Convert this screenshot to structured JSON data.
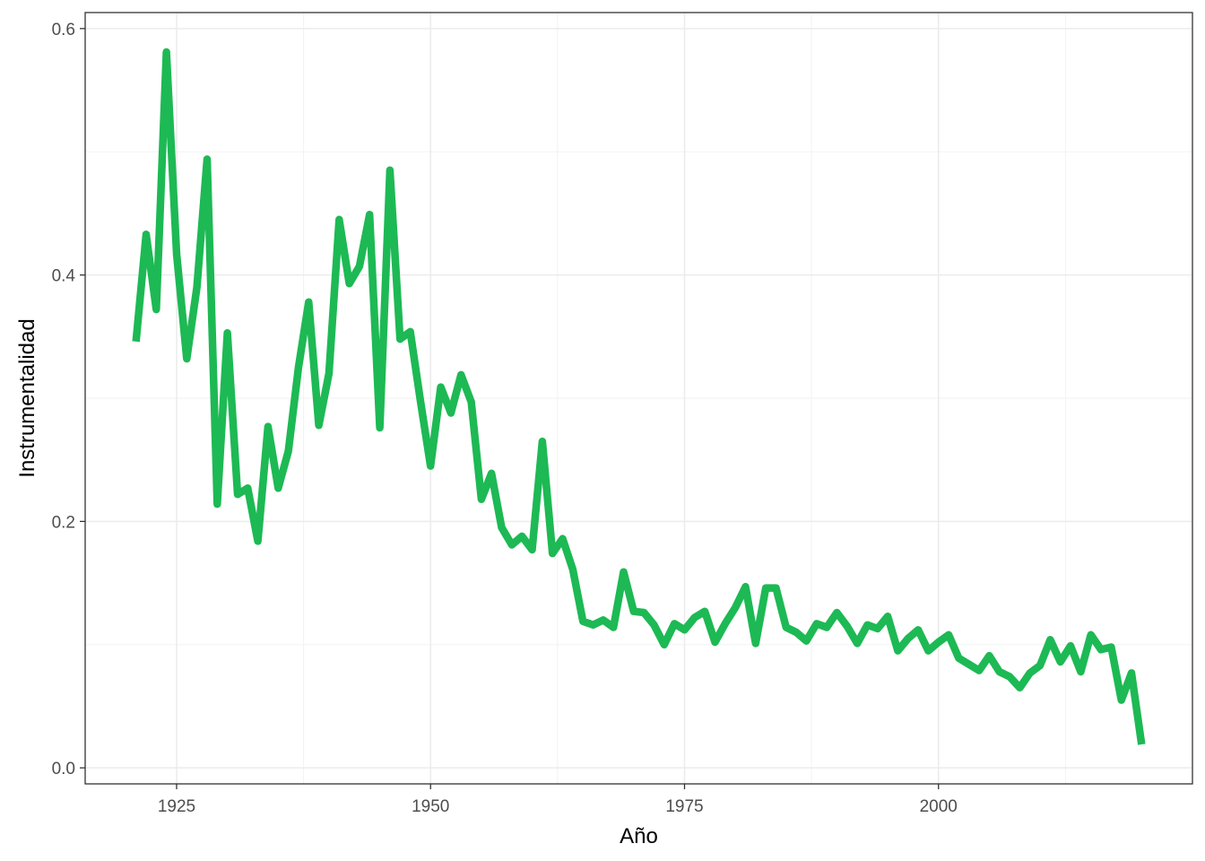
{
  "chart_data": {
    "type": "line",
    "title": "",
    "xlabel": "Año",
    "ylabel": "Instrumentalidad",
    "xlim": [
      1916,
      2025
    ],
    "ylim": [
      -0.013,
      0.613
    ],
    "x_ticks": [
      1925,
      1950,
      1975,
      2000
    ],
    "x_tick_labels": [
      "1925",
      "1950",
      "1975",
      "2000"
    ],
    "x_minor_ticks": [
      1937.5,
      1962.5,
      1987.5,
      2012.5
    ],
    "y_ticks": [
      0.0,
      0.2,
      0.4,
      0.6
    ],
    "y_tick_labels": [
      "0.0",
      "0.2",
      "0.4",
      "0.6"
    ],
    "y_minor_ticks": [
      0.1,
      0.3,
      0.5
    ],
    "grid": true,
    "legend": "none",
    "line_color": "#1DB954",
    "series": [
      {
        "x": [
          1921,
          1922,
          1923,
          1924,
          1925,
          1926,
          1927,
          1928,
          1929,
          1930,
          1931,
          1932,
          1933,
          1934,
          1935,
          1936,
          1937,
          1938,
          1939,
          1940,
          1941,
          1942,
          1943,
          1944,
          1945,
          1946,
          1947,
          1948,
          1949,
          1950,
          1951,
          1952,
          1953,
          1954,
          1955,
          1956,
          1957,
          1958,
          1959,
          1960,
          1961,
          1962,
          1963,
          1964,
          1965,
          1966,
          1967,
          1968,
          1969,
          1970,
          1971,
          1972,
          1973,
          1974,
          1975,
          1976,
          1977,
          1978,
          1979,
          1980,
          1981,
          1982,
          1983,
          1984,
          1985,
          1986,
          1987,
          1988,
          1989,
          1990,
          1991,
          1992,
          1993,
          1994,
          1995,
          1996,
          1997,
          1998,
          1999,
          2000,
          2001,
          2002,
          2003,
          2004,
          2005,
          2006,
          2007,
          2008,
          2009,
          2010,
          2011,
          2012,
          2013,
          2014,
          2015,
          2016,
          2017,
          2018,
          2019,
          2020
        ],
        "values": [
          0.346,
          0.433,
          0.372,
          0.581,
          0.417,
          0.332,
          0.39,
          0.494,
          0.214,
          0.353,
          0.222,
          0.227,
          0.184,
          0.277,
          0.227,
          0.257,
          0.325,
          0.378,
          0.278,
          0.32,
          0.445,
          0.393,
          0.407,
          0.449,
          0.276,
          0.485,
          0.348,
          0.354,
          0.298,
          0.245,
          0.309,
          0.288,
          0.319,
          0.297,
          0.218,
          0.239,
          0.195,
          0.181,
          0.188,
          0.177,
          0.265,
          0.174,
          0.186,
          0.161,
          0.119,
          0.116,
          0.12,
          0.114,
          0.159,
          0.127,
          0.126,
          0.116,
          0.1,
          0.117,
          0.112,
          0.122,
          0.127,
          0.102,
          0.117,
          0.13,
          0.147,
          0.101,
          0.146,
          0.146,
          0.114,
          0.11,
          0.103,
          0.117,
          0.114,
          0.126,
          0.115,
          0.101,
          0.116,
          0.113,
          0.123,
          0.095,
          0.105,
          0.112,
          0.095,
          0.102,
          0.108,
          0.089,
          0.084,
          0.079,
          0.091,
          0.078,
          0.074,
          0.065,
          0.077,
          0.083,
          0.104,
          0.086,
          0.099,
          0.078,
          0.108,
          0.096,
          0.098,
          0.055,
          0.077,
          0.019
        ]
      }
    ]
  }
}
